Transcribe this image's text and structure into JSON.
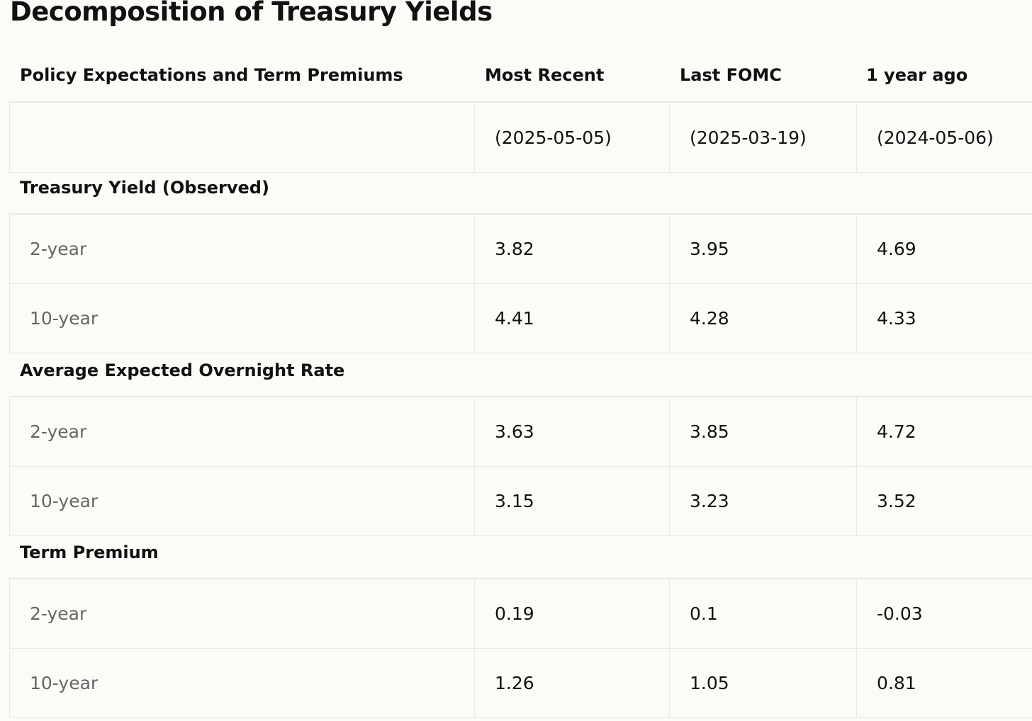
{
  "chart_data": {
    "type": "table",
    "title": "Decomposition of Treasury Yields",
    "columns": [
      "Policy Expectations and Term Premiums",
      "Most Recent",
      "Last FOMC",
      "1 year ago"
    ],
    "dates": [
      "(2025-05-05)",
      "(2025-03-19)",
      "(2024-05-06)"
    ],
    "sections": [
      {
        "label": "Treasury Yield (Observed)",
        "rows": [
          {
            "label": "2-year",
            "values": [
              "3.82",
              "3.95",
              "4.69"
            ]
          },
          {
            "label": "10-year",
            "values": [
              "4.41",
              "4.28",
              "4.33"
            ]
          }
        ]
      },
      {
        "label": "Average Expected Overnight Rate",
        "rows": [
          {
            "label": "2-year",
            "values": [
              "3.63",
              "3.85",
              "4.72"
            ]
          },
          {
            "label": "10-year",
            "values": [
              "3.15",
              "3.23",
              "3.52"
            ]
          }
        ]
      },
      {
        "label": "Term Premium",
        "rows": [
          {
            "label": "2-year",
            "values": [
              "0.19",
              "0.1",
              "-0.03"
            ]
          },
          {
            "label": "10-year",
            "values": [
              "1.26",
              "1.05",
              "0.81"
            ]
          }
        ]
      }
    ]
  }
}
